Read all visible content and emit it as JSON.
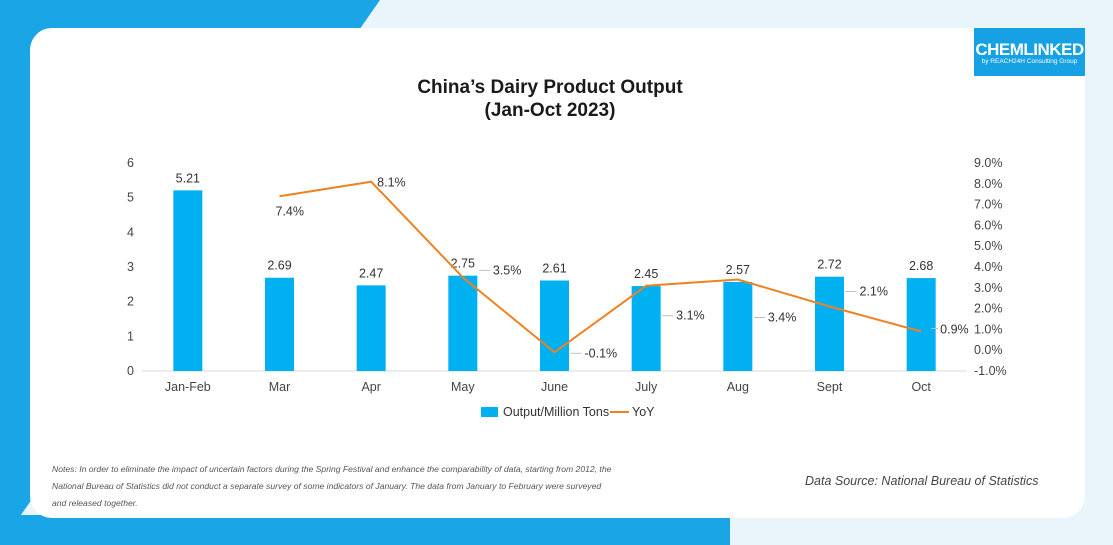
{
  "logo": {
    "main": "CHEMLINKED",
    "sub": "by REACH24H Consulting Group"
  },
  "title_line1": "China’s Dairy Product Output",
  "title_line2": "(Jan-Oct 2023)",
  "notes": "Notes: In order to eliminate the impact of uncertain factors during the Spring Festival and enhance the comparability of data, starting from 2012, the National Bureau of Statistics did not conduct a separate survey of some indicators of January. The data from January to February were surveyed and released together.",
  "source": "Data Source: National Bureau of Statistics",
  "colors": {
    "bar": "#00b0f0",
    "line": "#f08121",
    "accent": "#1aa6e6"
  },
  "chart_data": {
    "type": "bar",
    "title": "China’s Dairy Product Output (Jan-Oct 2023)",
    "categories": [
      "Jan-Feb",
      "Mar",
      "Apr",
      "May",
      "June",
      "July",
      "Aug",
      "Sept",
      "Oct"
    ],
    "series": [
      {
        "name": "Output/Million Tons",
        "type": "bar",
        "axis": "left",
        "values": [
          5.21,
          2.69,
          2.47,
          2.75,
          2.61,
          2.45,
          2.57,
          2.72,
          2.68
        ],
        "labels": [
          "5.21",
          "2.69",
          "2.47",
          "2.75",
          "2.61",
          "2.45",
          "2.57",
          "2.72",
          "2.68"
        ]
      },
      {
        "name": "YoY",
        "type": "line",
        "axis": "right",
        "values": [
          null,
          7.4,
          8.1,
          3.5,
          -0.1,
          3.1,
          3.4,
          2.1,
          0.9
        ],
        "labels": [
          null,
          "7.4%",
          "8.1%",
          "3.5%",
          "-0.1%",
          "3.1%",
          "3.4%",
          "2.1%",
          "0.9%"
        ]
      }
    ],
    "y_left": {
      "ylim": [
        0,
        6
      ],
      "ticks": [
        "0",
        "1",
        "2",
        "3",
        "4",
        "5",
        "6"
      ]
    },
    "y_right": {
      "ylim": [
        -1,
        9
      ],
      "ticks": [
        "-1.0%",
        "0.0%",
        "1.0%",
        "2.0%",
        "3.0%",
        "4.0%",
        "5.0%",
        "6.0%",
        "7.0%",
        "8.0%",
        "9.0%"
      ]
    },
    "legend": {
      "position": "bottom",
      "items": [
        "Output/Million Tons",
        "YoY"
      ]
    },
    "grid": false
  }
}
